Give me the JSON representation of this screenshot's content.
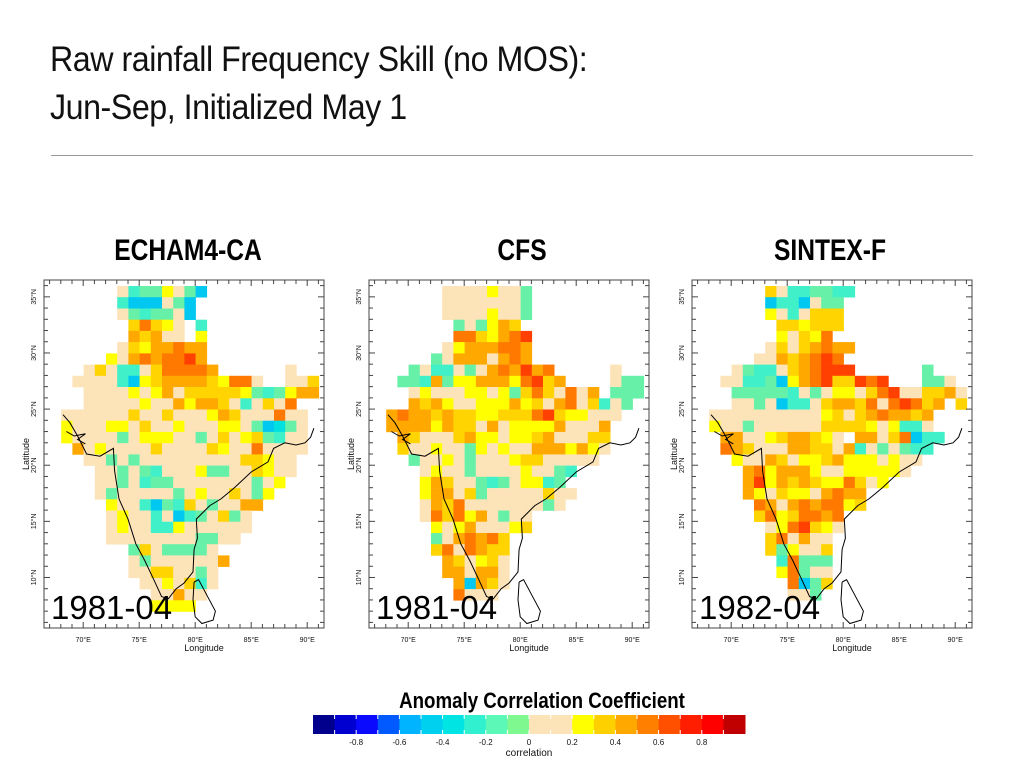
{
  "title_line1": "Raw rainfall Frequency Skill (no MOS):",
  "title_line2": "Jun-Sep, Initialized May 1",
  "colors": {
    "none": "#ffffff",
    "c": "#00c8f0",
    "C": "#00e0e0",
    "t": "#40f0c8",
    "g": "#66f0a8",
    "p": "#fde3b8",
    "y": "#ffff00",
    "Y": "#ffd400",
    "o": "#ffa800",
    "O": "#ff7800",
    "r": "#ff4000",
    "R": "#ff1000"
  },
  "chart_data": [
    {
      "type": "heatmap",
      "title": "ECHAM4-CA",
      "period": "1981-04",
      "xlabel": "Longitude",
      "ylabel": "Latitude",
      "xticks": [
        "70°E",
        "75°E",
        "80°E",
        "85°E",
        "90°E"
      ],
      "yticks": [
        "10°N",
        "15°N",
        "20°N",
        "25°N",
        "30°N",
        "35°N"
      ],
      "xlim": [
        66.5,
        91.5
      ],
      "ylim": [
        5.5,
        36.5
      ],
      "grid_codes": [
        "......ptggypgc...........",
        "......tcccpgc............",
        "......pgtggpc............",
        ".......YOYyp t...........",
        ".......oYopp y...........",
        "......pYyooOoo...........",
        ".....ypoOoOOro...........",
        "...pYpttpYOOOOo......p...",
        "..pppptcyYooooYyOOp..ppY.",
        "...ppppypyopYYYYYygtgyoo.",
        "...pppppyppoyooYptpYpO...",
        ".ppppppYppYpppyoYpppOpp..",
        ".ypppyypYppypppyypgcCgp..",
        ".yppppgpyyyppgpYpyYgtpp..",
        "..opyppppYppppYyppOpppp..",
        "...ppgpgpppppppppYYypp...",
        "....ppgpgtpppyggppYypp...",
        "....ppgptggpppppppgpy....",
        "....pgpppppgpyppYpgy.....",
        ".....ypptcgtYpgppoo......",
        ".....pypptpctgpYgp.......",
        ".....pyppttypppppp.......",
        ".....ppppppppggpp........",
        ".......gYpggggp..........",
        ".......pgppppppo.........",
        ".......ppYYppgp..........",
        "........ppypYtp..........",
        ".........ppopp...........",
        ".........yyyy............",
        "............."
      ]
    },
    {
      "type": "heatmap",
      "title": "CFS",
      "period": "1981-04",
      "xlabel": "Longitude",
      "ylabel": "Latitude",
      "xticks": [
        "70°E",
        "75°E",
        "80°E",
        "85°E",
        "90°E"
      ],
      "yticks": [
        "10°N",
        "15°N",
        "20°N",
        "25°N",
        "30°N",
        "35°N"
      ],
      "xlim": [
        66.5,
        91.5
      ],
      "ylim": [
        5.5,
        36.5
      ],
      "grid_codes": [
        "......ppppyppg...........",
        "......pppppppg...........",
        "......ppppyppg...........",
        ".......gpgyoY............",
        ".......OOYyoOr...........",
        "......pyoooOOo...........",
        ".....gpooopoOo...........",
        "...gpttpgpoOoroO.....p...",
        "..ggtogyyoooyOrYo....pgg.",
        "...pypppyypygYOYpOpo.ggg.",
        "...oYoyppyyyoyYpoOpYtpg..",
        ".oOooYoYYyyYYYOrYyyppp...",
        ".ooooyoYYpopyyyyopppo....",
        "..oYpppYoyypyyYopppYY....",
        "..Yppyppgypyppoooyoyp....",
        "...gppypgpppyYYppppp.....",
        "....pyppgppppyppgt.......",
        "....yoYppgtgpyytg........",
        "....yoopYgpppppYpp.......",
        "....poYOpppppppgp........",
        "....pOYOyopgpp...........",
        ".....ypyopppyY...........",
        ".....gpoOoOY.............",
        ".....YOpOoYY.............",
        "......oYpyYp.............",
        "......oopoop.............",
        ".......ocoYp.............",
        ".......Oppp..............",
        ".............",
        "............."
      ]
    },
    {
      "type": "heatmap",
      "title": "SINTEX-F",
      "period": "1982-04",
      "xlabel": "Longitude",
      "ylabel": "Latitude",
      "xticks": [
        "70°E",
        "75°E",
        "80°E",
        "85°E",
        "90°E"
      ],
      "yticks": [
        "10°N",
        "15°N",
        "20°N",
        "25°N",
        "30°N",
        "35°N"
      ],
      "xlim": [
        66.5,
        91.5
      ],
      "ylim": [
        5.5,
        36.5
      ],
      "grid_codes": [
        "......Ypttggtt...........",
        "......cttcpgg............",
        "......yptpYYY............",
        ".......YYyYYY............",
        ".......ypYyO.............",
        "......pYpYoOoo...........",
        ".....ppoYoOrO............",
        "...pgttpYoOrrr......g....",
        "..ppttgcyoOrYYrOr...ggp..",
        "...gggggtpgpyypYOrppYYop.",
        "...ppgpcttpYooYOpOrOYo.Y.",
        ".ppppppppppyYpYoOooYo....",
        ".yppgppppppYYYYypyttp....",
        "..ooppyYooYyp oopYOctt...",
        "..OoYpppooYYpotpgpgtt....",
        "...yppoYpyyYoyyypypp.....",
        "....oOyoooyppyyyyyp......",
        "....oryoYoYyyOYpy........",
        "....oypYyypoOoo..........",
        ".....OopoOoOOyY..........",
        ".....YOyYOOoO............",
        "......pyOrYyp............",
        "......YOpopp.............",
        "......YgyppY.............",
        ".......tOggg.............",
        ".......yOgpp.............",
        "........OcgY.............",
        "........ppg..............",
        ".............",
        "............."
      ]
    }
  ],
  "colorbar": {
    "title": "Anomaly Correlation Coefficient",
    "label": "correlation",
    "ticks": [
      "-0.8",
      "-0.6",
      "-0.4",
      "-0.2",
      "0",
      "0.2",
      "0.4",
      "0.6",
      "0.8"
    ],
    "bins": [
      -1.0,
      -0.9,
      -0.8,
      -0.7,
      -0.6,
      -0.5,
      -0.4,
      -0.3,
      -0.2,
      -0.1,
      0.0,
      0.1,
      0.2,
      0.3,
      0.4,
      0.5,
      0.6,
      0.7,
      0.8,
      0.9,
      1.0
    ],
    "bin_colors": [
      "#00008c",
      "#0000d0",
      "#0a0aff",
      "#005aff",
      "#00b4ff",
      "#00d0f0",
      "#00e4e4",
      "#30f0d0",
      "#5cf8b8",
      "#80f890",
      "#fde3b8",
      "#fde3b8",
      "#ffff00",
      "#ffd000",
      "#ffa800",
      "#ff8000",
      "#ff5000",
      "#ff1e00",
      "#ff0000",
      "#c00000"
    ]
  }
}
